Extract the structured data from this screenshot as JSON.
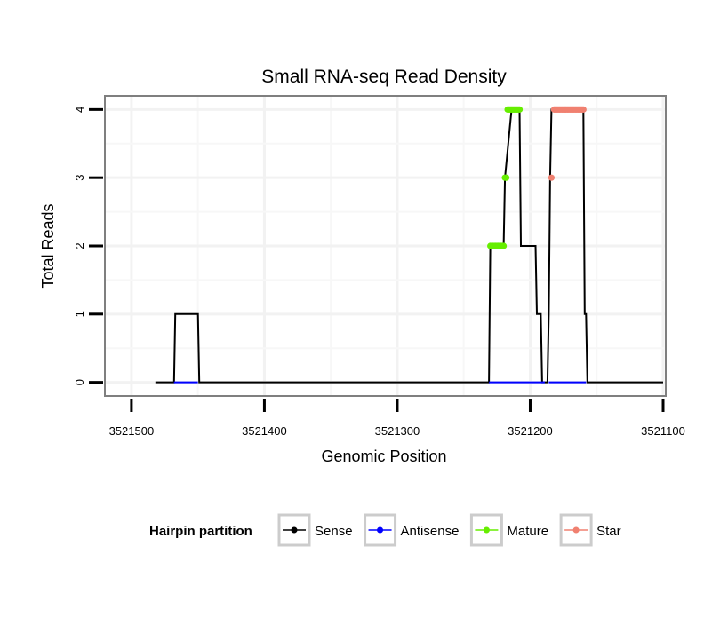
{
  "chart_data": {
    "type": "line",
    "title": "Small RNA-seq Read Density",
    "xlabel": "Genomic Position",
    "ylabel": "Total Reads",
    "x_reversed": true,
    "xlim": [
      3521520,
      3521098
    ],
    "ylim": [
      -0.2,
      4.2
    ],
    "x_ticks": [
      3521500,
      3521400,
      3521300,
      3521200,
      3521100
    ],
    "x_tick_labels": [
      "3521500",
      "3521400",
      "3521300",
      "3521200",
      "3521100"
    ],
    "y_ticks": [
      0,
      1,
      2,
      3,
      4
    ],
    "y_tick_labels": [
      "0",
      "1",
      "2",
      "3",
      "4"
    ],
    "grid": true,
    "legend": {
      "title": "Hairpin partition",
      "position": "bottom",
      "entries": [
        {
          "name": "Sense",
          "color": "#000000"
        },
        {
          "name": "Antisense",
          "color": "#0000ff"
        },
        {
          "name": "Mature",
          "color": "#66ee00"
        },
        {
          "name": "Star",
          "color": "#f08070"
        }
      ]
    },
    "series": [
      {
        "name": "Sense",
        "color": "#000000",
        "x": [
          3521482,
          3521468,
          3521467,
          3521450,
          3521449,
          3521231,
          3521230,
          3521220,
          3521219,
          3521214,
          3521213,
          3521208,
          3521207,
          3521196,
          3521195,
          3521192,
          3521191,
          3521190,
          3521189,
          3521187,
          3521186,
          3521185,
          3521184,
          3521160,
          3521159,
          3521158,
          3521157,
          3521100
        ],
        "y": [
          0,
          0,
          1,
          1,
          0,
          0,
          2,
          2,
          3,
          4,
          4,
          4,
          2,
          2,
          1,
          1,
          0,
          0,
          0,
          0,
          1,
          3,
          4,
          4,
          1,
          1,
          0,
          0
        ]
      },
      {
        "name": "Antisense",
        "color": "#0000ff",
        "x": [
          3521468,
          3521450,
          3521231,
          3521189,
          3521186,
          3521158
        ],
        "y": [
          0,
          0,
          0,
          0,
          0,
          0
        ],
        "segments": [
          [
            0,
            1
          ],
          [
            2,
            3
          ],
          [
            4,
            5
          ]
        ]
      },
      {
        "name": "Mature",
        "color": "#66ee00",
        "x": [
          3521230,
          3521229,
          3521228,
          3521227,
          3521226,
          3521225,
          3521224,
          3521223,
          3521222,
          3521221,
          3521220,
          3521219,
          3521218,
          3521217,
          3521216,
          3521215,
          3521214,
          3521213,
          3521212,
          3521211,
          3521210,
          3521209,
          3521208
        ],
        "y": [
          2,
          2,
          2,
          2,
          2,
          2,
          2,
          2,
          2,
          2,
          2,
          3,
          3,
          4,
          4,
          4,
          4,
          4,
          4,
          4,
          4,
          4,
          4
        ]
      },
      {
        "name": "Star",
        "color": "#f08070",
        "x": [
          3521184,
          3521182,
          3521181,
          3521180,
          3521179,
          3521178,
          3521177,
          3521176,
          3521175,
          3521174,
          3521173,
          3521172,
          3521171,
          3521170,
          3521169,
          3521168,
          3521167,
          3521166,
          3521165,
          3521164,
          3521163,
          3521162,
          3521161,
          3521160
        ],
        "y": [
          3,
          4,
          4,
          4,
          4,
          4,
          4,
          4,
          4,
          4,
          4,
          4,
          4,
          4,
          4,
          4,
          4,
          4,
          4,
          4,
          4,
          4,
          4,
          4
        ]
      }
    ]
  }
}
